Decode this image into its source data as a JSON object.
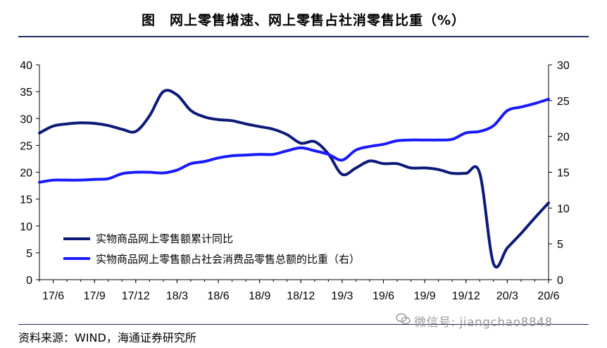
{
  "figure_title": "图　网上零售增速、网上零售占社消零售比重（%）",
  "source_note": "资料来源：WIND，海通证券研究所",
  "watermark": "微信号: jiangchao8848",
  "colors": {
    "series_growth": "#0d1a78",
    "series_share": "#1a1aff",
    "axis": "#000000",
    "rule": "#1f2a5c"
  },
  "chart_data": {
    "type": "line",
    "title": "网上零售增速、网上零售占社消零售比重（%）",
    "x_ticks": [
      "17/6",
      "17/9",
      "17/12",
      "18/3",
      "18/6",
      "18/9",
      "18/12",
      "19/3",
      "19/6",
      "19/9",
      "19/12",
      "20/3",
      "20/6"
    ],
    "x": [
      "17/5",
      "17/6",
      "17/7",
      "17/8",
      "17/9",
      "17/10",
      "17/11",
      "17/12",
      "18/1",
      "18/2",
      "18/3",
      "18/4",
      "18/5",
      "18/6",
      "18/7",
      "18/8",
      "18/9",
      "18/10",
      "18/11",
      "18/12",
      "19/1",
      "19/2",
      "19/3",
      "19/4",
      "19/5",
      "19/6",
      "19/7",
      "19/8",
      "19/9",
      "19/10",
      "19/11",
      "19/12",
      "20/1",
      "20/2",
      "20/3",
      "20/4",
      "20/5",
      "20/6"
    ],
    "y_left": {
      "min": 0,
      "max": 40,
      "ticks": [
        0,
        5,
        10,
        15,
        20,
        25,
        30,
        35,
        40
      ]
    },
    "y_right": {
      "min": 0,
      "max": 30,
      "ticks": [
        0,
        5,
        10,
        15,
        20,
        25,
        30
      ]
    },
    "legend_position": "bottom-left",
    "series": [
      {
        "name": "实物商品网上零售额累计同比",
        "axis": "left",
        "values": [
          27.3,
          28.6,
          29.0,
          29.2,
          29.1,
          28.7,
          28.0,
          27.6,
          30.5,
          35.0,
          34.4,
          31.5,
          30.3,
          29.8,
          29.6,
          29.0,
          28.5,
          28.0,
          27.0,
          25.4,
          25.7,
          23.4,
          19.6,
          20.8,
          22.1,
          21.6,
          21.6,
          20.8,
          20.8,
          20.5,
          19.8,
          19.8,
          19.8,
          3.0,
          5.9,
          8.6,
          11.5,
          14.3
        ]
      },
      {
        "name": "实物商品网上零售额占社会消费品零售总额的比重（右）",
        "axis": "right",
        "values": [
          13.6,
          13.9,
          13.9,
          13.9,
          14.0,
          14.1,
          14.8,
          15.0,
          15.0,
          14.9,
          15.3,
          16.2,
          16.5,
          17.0,
          17.3,
          17.4,
          17.5,
          17.5,
          18.0,
          18.4,
          18.0,
          17.5,
          16.7,
          18.1,
          18.6,
          18.9,
          19.4,
          19.5,
          19.5,
          19.5,
          19.6,
          20.5,
          20.7,
          21.5,
          23.6,
          24.1,
          24.6,
          25.2
        ]
      }
    ]
  }
}
